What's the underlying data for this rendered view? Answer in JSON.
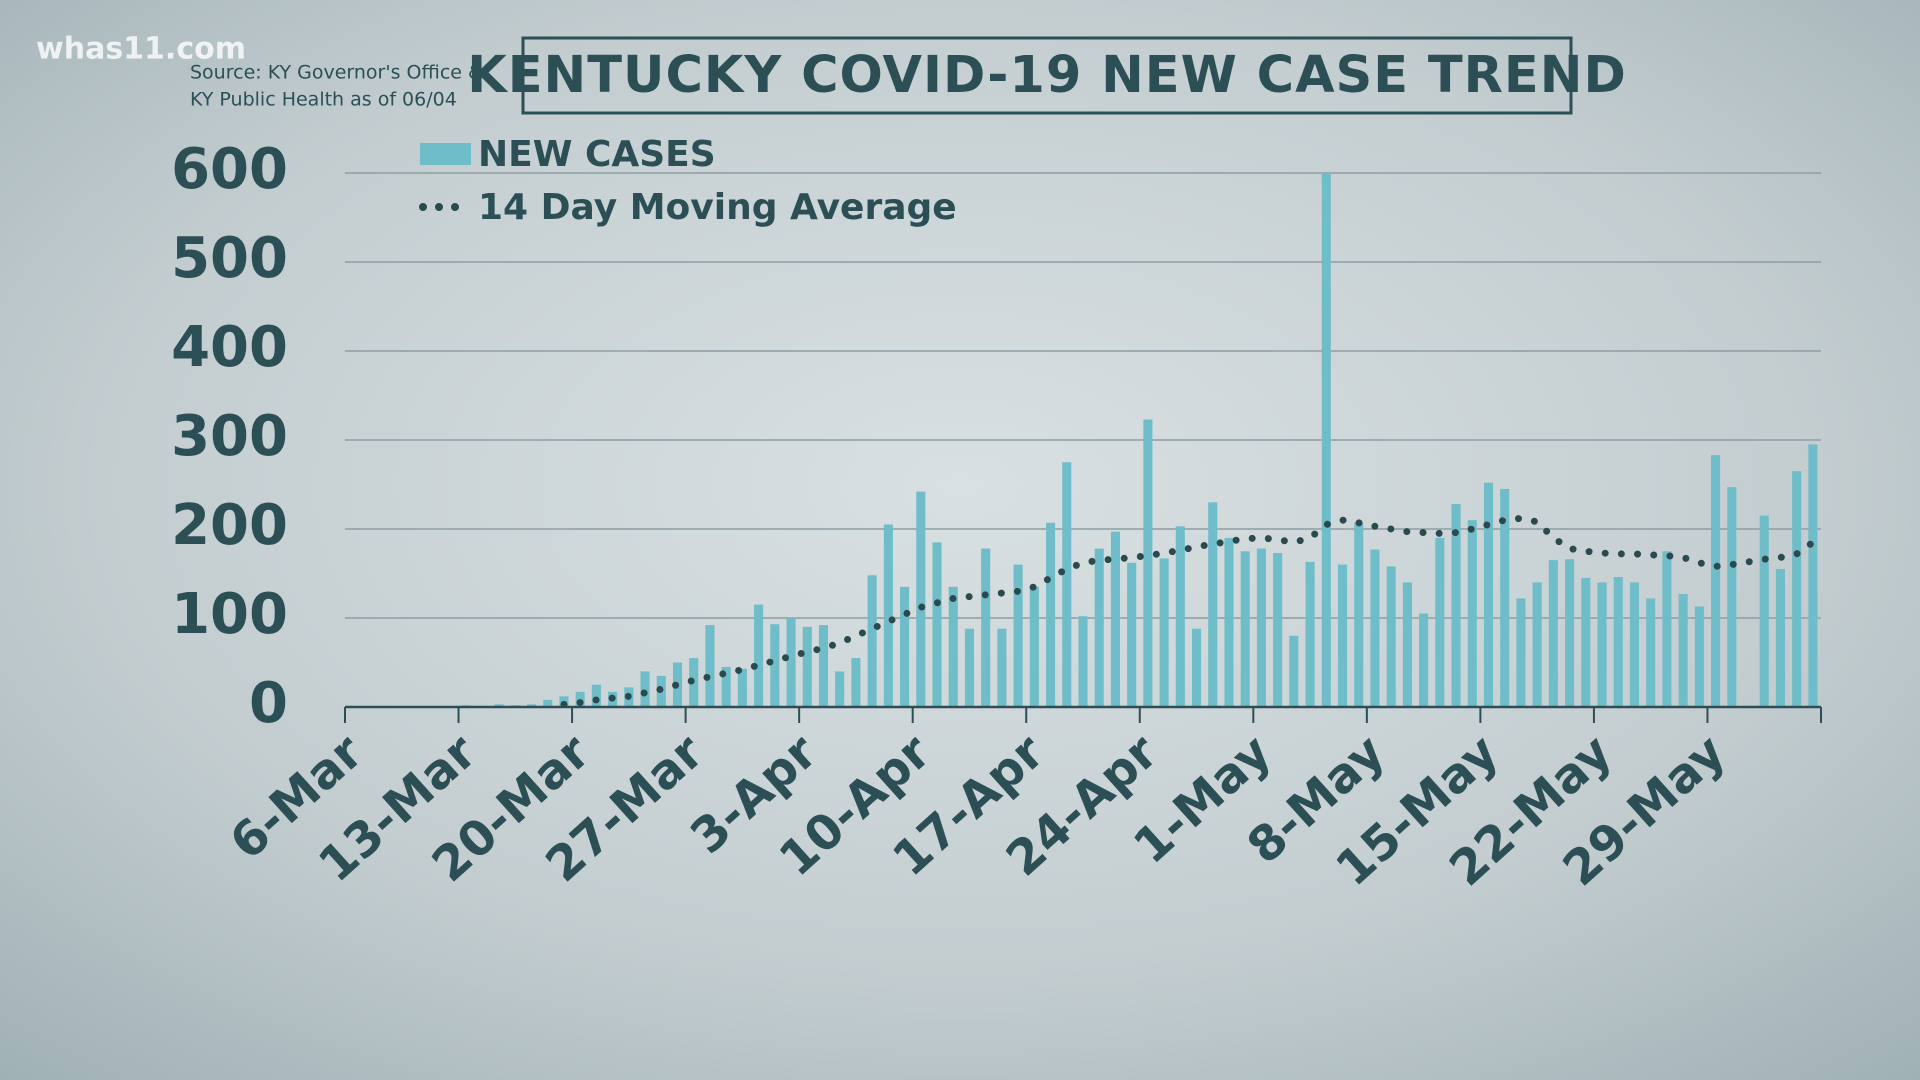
{
  "chart_data": {
    "type": "bar",
    "title": "KENTUCKY COVID-19 NEW CASE TREND",
    "watermark": "whas11.com",
    "source": [
      "Source: KY Governor's Office &",
      "KY Public Health as of 06/04"
    ],
    "categories": [
      "6-Mar",
      null,
      null,
      null,
      null,
      null,
      null,
      "13-Mar",
      null,
      null,
      null,
      null,
      null,
      null,
      "20-Mar",
      null,
      null,
      null,
      null,
      null,
      null,
      "27-Mar",
      null,
      null,
      null,
      null,
      null,
      null,
      "3-Apr",
      null,
      null,
      null,
      null,
      null,
      null,
      "10-Apr",
      null,
      null,
      null,
      null,
      null,
      null,
      "17-Apr",
      null,
      null,
      null,
      null,
      null,
      null,
      "24-Apr",
      null,
      null,
      null,
      null,
      null,
      null,
      "1-May",
      null,
      null,
      null,
      null,
      null,
      null,
      "8-May",
      null,
      null,
      null,
      null,
      null,
      null,
      "15-May",
      null,
      null,
      null,
      null,
      null,
      null,
      "22-May",
      null,
      null,
      null,
      null,
      null,
      null,
      "29-May",
      null,
      null,
      null,
      null,
      null,
      null
    ],
    "series": [
      {
        "name": "NEW CASES",
        "type": "bar",
        "color": "#6fbdc9",
        "values": [
          1,
          0,
          1,
          1,
          0,
          1,
          1,
          2,
          1,
          3,
          2,
          3,
          8,
          12,
          17,
          25,
          17,
          22,
          40,
          35,
          50,
          55,
          92,
          45,
          43,
          115,
          93,
          100,
          90,
          92,
          40,
          55,
          148,
          205,
          135,
          242,
          185,
          135,
          88,
          178,
          88,
          160,
          135,
          207,
          275,
          102,
          178,
          197,
          162,
          323,
          167,
          203,
          88,
          230,
          190,
          175,
          178,
          173,
          80,
          163,
          600,
          160,
          207,
          177,
          158,
          140,
          105,
          190,
          228,
          210,
          252,
          245,
          122,
          140,
          165,
          166,
          145,
          140,
          146,
          140,
          122,
          175,
          127,
          113,
          283,
          247,
          null,
          215,
          155,
          265,
          295
        ]
      },
      {
        "name": "14 Day Moving Average",
        "type": "line",
        "color": "#2b4a4f",
        "values": [
          null,
          null,
          null,
          null,
          null,
          null,
          null,
          null,
          null,
          null,
          null,
          null,
          null,
          3,
          5,
          8,
          10,
          12,
          16,
          20,
          25,
          30,
          34,
          38,
          42,
          47,
          52,
          57,
          62,
          66,
          72,
          80,
          88,
          96,
          104,
          112,
          117,
          122,
          124,
          126,
          128,
          130,
          135,
          145,
          155,
          162,
          165,
          166,
          168,
          170,
          173,
          176,
          180,
          183,
          186,
          189,
          190,
          188,
          185,
          190,
          205,
          210,
          207,
          203,
          200,
          197,
          196,
          195,
          196,
          200,
          205,
          210,
          212,
          208,
          190,
          178,
          175,
          173,
          172,
          172,
          171,
          170,
          168,
          162,
          158,
          160,
          163,
          166,
          168,
          172,
          185
        ]
      }
    ],
    "ylim": [
      0,
      600
    ],
    "yticks": [
      0,
      100,
      200,
      300,
      400,
      500,
      600
    ],
    "grid": true,
    "legend": "top-left"
  }
}
